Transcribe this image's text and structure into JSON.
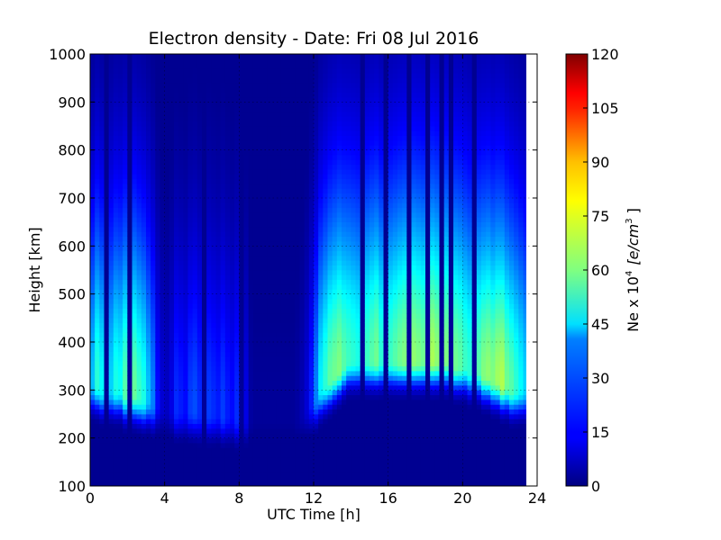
{
  "chart_data": {
    "type": "heatmap",
    "title": "Electron density - Date: Fri 08 Jul 2016",
    "xlabel": "UTC Time [h]",
    "ylabel": "Height [km]",
    "xlim": [
      0,
      24
    ],
    "ylim": [
      100,
      1000
    ],
    "xticks": [
      "0",
      "4",
      "8",
      "12",
      "16",
      "20",
      "24"
    ],
    "yticks": [
      "100",
      "200",
      "300",
      "400",
      "500",
      "600",
      "700",
      "800",
      "900",
      "1000"
    ],
    "grid": true,
    "data_extent_hours": [
      0,
      23.4
    ],
    "colorbar": {
      "label": "Ne x 10",
      "label_exponent": "4",
      "label_units": "[e/cm",
      "label_units_exponent": "3",
      "label_units_close": "]",
      "range": [
        0,
        120
      ],
      "ticks": [
        "0",
        "15",
        "30",
        "45",
        "60",
        "75",
        "90",
        "105",
        "120"
      ],
      "colormap": "jet"
    },
    "time_hours": [
      0.0,
      0.25,
      0.5,
      0.75,
      1.0,
      1.25,
      1.5,
      1.75,
      2.0,
      2.25,
      2.5,
      2.75,
      3.0,
      3.25,
      3.5,
      3.75,
      4.0,
      4.25,
      4.5,
      4.75,
      5.0,
      5.25,
      5.5,
      5.75,
      6.0,
      6.25,
      6.5,
      6.75,
      7.0,
      7.25,
      7.5,
      7.75,
      8.0,
      8.25,
      8.5,
      8.75,
      9.0,
      9.25,
      9.5,
      9.75,
      10.0,
      10.25,
      10.5,
      10.75,
      11.0,
      11.25,
      11.5,
      11.75,
      12.0,
      12.25,
      12.5,
      12.75,
      13.0,
      13.25,
      13.5,
      13.75,
      14.0,
      14.25,
      14.5,
      14.75,
      15.0,
      15.25,
      15.5,
      15.75,
      16.0,
      16.25,
      16.5,
      16.75,
      17.0,
      17.25,
      17.5,
      17.75,
      18.0,
      18.25,
      18.5,
      18.75,
      19.0,
      19.25,
      19.5,
      19.75,
      20.0,
      20.25,
      20.5,
      20.75,
      21.0,
      21.25,
      21.5,
      21.75,
      22.0,
      22.25,
      22.5,
      22.75,
      23.0,
      23.25
    ],
    "peak_density": [
      38,
      50,
      45,
      3,
      40,
      48,
      46,
      55,
      3,
      57,
      52,
      48,
      38,
      30,
      16,
      10,
      8,
      12,
      20,
      18,
      16,
      22,
      24,
      20,
      3,
      22,
      20,
      18,
      22,
      18,
      16,
      20,
      3,
      12,
      4,
      3,
      3,
      3,
      3,
      3,
      3,
      3,
      3,
      3,
      4,
      6,
      10,
      18,
      30,
      44,
      50,
      56,
      58,
      60,
      55,
      52,
      50,
      48,
      3,
      52,
      55,
      58,
      50,
      3,
      52,
      55,
      58,
      60,
      3,
      62,
      60,
      58,
      3,
      65,
      62,
      3,
      60,
      3,
      58,
      56,
      52,
      50,
      3,
      55,
      60,
      62,
      60,
      64,
      66,
      58,
      55,
      50,
      45,
      40
    ],
    "peak_height_km": [
      310,
      310,
      300,
      300,
      300,
      300,
      300,
      290,
      290,
      290,
      285,
      280,
      280,
      270,
      270,
      265,
      260,
      260,
      255,
      255,
      255,
      255,
      255,
      250,
      250,
      250,
      250,
      250,
      245,
      245,
      245,
      240,
      240,
      240,
      240,
      240,
      240,
      240,
      240,
      240,
      240,
      240,
      240,
      240,
      240,
      250,
      260,
      270,
      280,
      300,
      310,
      320,
      330,
      340,
      350,
      360,
      360,
      360,
      360,
      360,
      360,
      360,
      360,
      360,
      360,
      360,
      360,
      360,
      360,
      360,
      360,
      360,
      360,
      360,
      360,
      360,
      360,
      360,
      350,
      350,
      350,
      340,
      340,
      340,
      330,
      330,
      320,
      320,
      310,
      310,
      300,
      300,
      300,
      300
    ]
  }
}
